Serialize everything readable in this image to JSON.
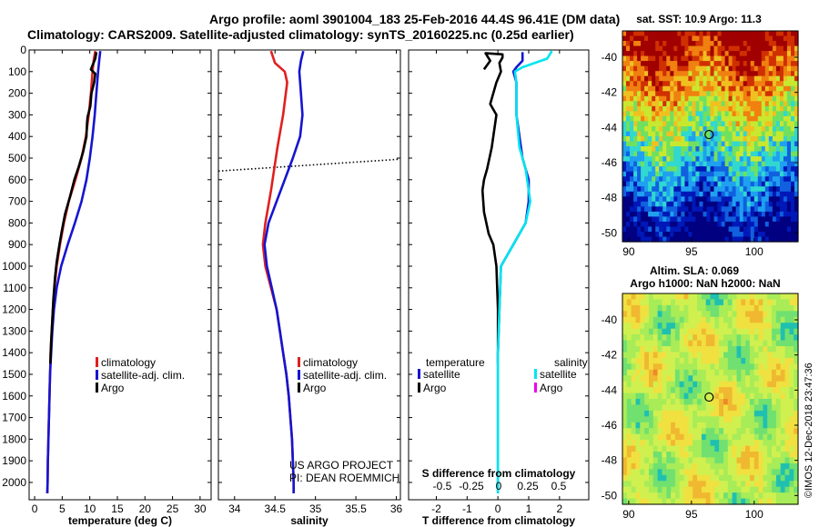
{
  "title": {
    "line1": "Argo profile: aoml 3901004_183 25-Feb-2016 44.4S 96.41E (DM data)",
    "line2": "Climatology: CARS2009. Satellite-adjusted climatology: synTS_20160225.nc (0.25d earlier)"
  },
  "colors": {
    "climatology": "#e02020",
    "satellite": "#1515d0",
    "argo": "#000000",
    "sat_salinity": "#00e5ee",
    "argo_salinity": "#ee00ee"
  },
  "depth_axis": {
    "ylim": [
      0,
      2080
    ],
    "ticks": [
      0,
      100,
      200,
      300,
      400,
      500,
      600,
      700,
      800,
      900,
      1000,
      1100,
      1200,
      1300,
      1400,
      1500,
      1600,
      1700,
      1800,
      1900,
      2000
    ]
  },
  "chart_data": [
    {
      "type": "line",
      "id": "temperature",
      "xlabel": "temperature (deg C)",
      "xlim": [
        -1,
        32
      ],
      "xticks": [
        0,
        5,
        10,
        15,
        20,
        25,
        30
      ],
      "legend": {
        "location": "lower-middle",
        "climatology": "climatology",
        "satellite": "satellite-adj. clim.",
        "argo": "Argo"
      },
      "series": [
        {
          "name": "climatology",
          "color": "#e02020",
          "points": [
            [
              11.0,
              5
            ],
            [
              10.7,
              50
            ],
            [
              10.5,
              100
            ],
            [
              10.2,
              200
            ],
            [
              9.8,
              300
            ],
            [
              9.3,
              400
            ],
            [
              8.5,
              500
            ],
            [
              7.4,
              600
            ],
            [
              6.2,
              700
            ],
            [
              5.3,
              800
            ],
            [
              4.6,
              900
            ],
            [
              4.0,
              1000
            ],
            [
              3.6,
              1100
            ],
            [
              3.3,
              1200
            ],
            [
              3.1,
              1300
            ],
            [
              2.9,
              1400
            ],
            [
              2.8,
              1500
            ],
            [
              2.7,
              1600
            ],
            [
              2.6,
              1700
            ],
            [
              2.5,
              1800
            ],
            [
              2.4,
              1900
            ],
            [
              2.35,
              2000
            ],
            [
              2.3,
              2050
            ]
          ]
        },
        {
          "name": "satellite",
          "color": "#1515d0",
          "points": [
            [
              11.9,
              5
            ],
            [
              11.7,
              50
            ],
            [
              11.5,
              100
            ],
            [
              11.2,
              200
            ],
            [
              10.9,
              300
            ],
            [
              10.5,
              400
            ],
            [
              10.0,
              500
            ],
            [
              9.4,
              600
            ],
            [
              8.5,
              700
            ],
            [
              7.3,
              800
            ],
            [
              6.0,
              900
            ],
            [
              4.8,
              1000
            ],
            [
              4.0,
              1100
            ],
            [
              3.5,
              1200
            ],
            [
              3.2,
              1300
            ],
            [
              3.0,
              1400
            ],
            [
              2.8,
              1500
            ],
            [
              2.7,
              1600
            ],
            [
              2.6,
              1700
            ],
            [
              2.5,
              1800
            ],
            [
              2.4,
              1900
            ],
            [
              2.35,
              2000
            ],
            [
              2.3,
              2050
            ]
          ]
        },
        {
          "name": "Argo",
          "color": "#000000",
          "points": [
            [
              11.2,
              10
            ],
            [
              11.0,
              40
            ],
            [
              10.2,
              90
            ],
            [
              11.0,
              110
            ],
            [
              10.8,
              150
            ],
            [
              10.3,
              200
            ],
            [
              10.1,
              260
            ],
            [
              9.6,
              310
            ],
            [
              9.5,
              340
            ],
            [
              9.4,
              400
            ],
            [
              8.8,
              470
            ],
            [
              8.0,
              540
            ],
            [
              7.2,
              600
            ],
            [
              6.4,
              680
            ],
            [
              5.5,
              760
            ],
            [
              4.9,
              840
            ],
            [
              4.5,
              900
            ],
            [
              4.0,
              980
            ],
            [
              3.7,
              1050
            ],
            [
              3.4,
              1150
            ],
            [
              3.2,
              1250
            ],
            [
              3.0,
              1350
            ],
            [
              2.85,
              1450
            ]
          ]
        }
      ]
    },
    {
      "type": "line",
      "id": "salinity",
      "xlabel": "salinity",
      "xlim": [
        33.8,
        36.05
      ],
      "xticks": [
        34,
        34.5,
        35,
        35.5,
        36
      ],
      "xtick_labels": [
        "34",
        "34.5",
        "35",
        "35.5",
        "36"
      ],
      "annotation_line1": "US ARGO PROJECT",
      "annotation_line2": "PI: DEAN ROEMMICH",
      "legend": {
        "location": "lower-middle",
        "climatology": "climatology",
        "satellite": "satellite-adj. clim.",
        "argo": "Argo"
      },
      "dotted_line": {
        "x": [
          33.8,
          36.05
        ],
        "y": [
          560,
          505
        ]
      },
      "series": [
        {
          "name": "climatology",
          "color": "#e02020",
          "points": [
            [
              34.45,
              5
            ],
            [
              34.5,
              60
            ],
            [
              34.62,
              100
            ],
            [
              34.65,
              150
            ],
            [
              34.6,
              300
            ],
            [
              34.53,
              450
            ],
            [
              34.45,
              650
            ],
            [
              34.38,
              800
            ],
            [
              34.35,
              900
            ],
            [
              34.38,
              1000
            ],
            [
              34.45,
              1100
            ],
            [
              34.52,
              1200
            ],
            [
              34.56,
              1300
            ],
            [
              34.6,
              1400
            ],
            [
              34.64,
              1500
            ],
            [
              34.67,
              1600
            ],
            [
              34.69,
              1700
            ],
            [
              34.71,
              1800
            ],
            [
              34.72,
              1900
            ],
            [
              34.73,
              2000
            ],
            [
              34.73,
              2050
            ]
          ]
        },
        {
          "name": "satellite",
          "color": "#1515d0",
          "points": [
            [
              34.85,
              5
            ],
            [
              34.82,
              50
            ],
            [
              34.8,
              100
            ],
            [
              34.82,
              200
            ],
            [
              34.84,
              300
            ],
            [
              34.81,
              400
            ],
            [
              34.72,
              500
            ],
            [
              34.62,
              600
            ],
            [
              34.52,
              700
            ],
            [
              34.42,
              800
            ],
            [
              34.37,
              900
            ],
            [
              34.4,
              1000
            ],
            [
              34.46,
              1100
            ],
            [
              34.52,
              1200
            ],
            [
              34.56,
              1300
            ],
            [
              34.6,
              1400
            ],
            [
              34.64,
              1500
            ],
            [
              34.67,
              1600
            ],
            [
              34.69,
              1700
            ],
            [
              34.71,
              1800
            ],
            [
              34.72,
              1900
            ],
            [
              34.73,
              2000
            ],
            [
              34.73,
              2050
            ]
          ]
        }
      ]
    },
    {
      "type": "line",
      "id": "difference",
      "xlabel": "T difference from climatology",
      "xlim": [
        -2.9,
        2.95
      ],
      "xticks": [
        -2,
        -1,
        0,
        1,
        2
      ],
      "top_axis_label": "S difference from climatology",
      "s_axis": {
        "ticks": [
          -0.5,
          -0.25,
          0,
          0.25,
          0.5
        ],
        "labels": [
          "-0.5",
          "-0.25",
          "0",
          "0.25",
          "0.5"
        ]
      },
      "legend": {
        "temperature_header": "temperature",
        "salinity_header": "salinity",
        "satellite": "satellite",
        "argo": "Argo"
      },
      "series": [
        {
          "name": "temperature satellite",
          "color": "#1515d0",
          "points": [
            [
              0.8,
              10
            ],
            [
              0.8,
              50
            ],
            [
              0.6,
              80
            ],
            [
              0.5,
              100
            ],
            [
              0.6,
              150
            ],
            [
              0.6,
              300
            ],
            [
              0.8,
              500
            ],
            [
              1.0,
              600
            ],
            [
              1.0,
              700
            ],
            [
              0.9,
              800
            ],
            [
              0.5,
              900
            ],
            [
              0.1,
              1000
            ],
            [
              0.05,
              1200
            ],
            [
              0,
              1400
            ],
            [
              0,
              2050
            ]
          ]
        },
        {
          "name": "temperature Argo",
          "color": "#000000",
          "points": [
            [
              -0.45,
              90
            ],
            [
              -0.25,
              50
            ],
            [
              -0.4,
              15
            ],
            [
              0.15,
              20
            ],
            [
              0.15,
              35
            ],
            [
              0.05,
              60
            ],
            [
              0.1,
              100
            ],
            [
              -0.05,
              150
            ],
            [
              -0.25,
              250
            ],
            [
              -0.05,
              300
            ],
            [
              -0.1,
              350
            ],
            [
              -0.2,
              450
            ],
            [
              -0.35,
              550
            ],
            [
              -0.45,
              600
            ],
            [
              -0.5,
              650
            ],
            [
              -0.45,
              750
            ],
            [
              -0.3,
              850
            ],
            [
              -0.15,
              900
            ],
            [
              -0.05,
              1000
            ],
            [
              0,
              1200
            ],
            [
              0,
              1450
            ]
          ]
        },
        {
          "name": "salinity satellite",
          "color": "#00e5ee",
          "points": [
            [
              1.75,
              5
            ],
            [
              1.6,
              40
            ],
            [
              0.8,
              80
            ],
            [
              0.55,
              100
            ],
            [
              0.6,
              150
            ],
            [
              0.6,
              300
            ],
            [
              0.7,
              450
            ],
            [
              0.9,
              550
            ],
            [
              0.95,
              600
            ],
            [
              1.05,
              700
            ],
            [
              0.9,
              800
            ],
            [
              0.5,
              900
            ],
            [
              0.1,
              1000
            ],
            [
              0.05,
              1200
            ],
            [
              0,
              1400
            ],
            [
              0,
              1600
            ],
            [
              0,
              2050
            ]
          ]
        }
      ]
    },
    {
      "type": "heatmap",
      "id": "sst_map",
      "title": "sat. SST: 10.9 Argo: 11.3",
      "xlim": [
        89.5,
        103.5
      ],
      "ylim": [
        -50.5,
        -38.5
      ],
      "xticks": [
        90,
        95,
        100
      ],
      "yticks": [
        -40,
        -42,
        -44,
        -46,
        -48,
        -50
      ],
      "marker": {
        "lon": 96.41,
        "lat": -44.4
      }
    },
    {
      "type": "heatmap",
      "id": "sla_map",
      "title_line1": "Altim. SLA: 0.069",
      "title_line2": "Argo h1000: NaN h2000: NaN",
      "xlim": [
        89.5,
        103.5
      ],
      "ylim": [
        -50.5,
        -38.5
      ],
      "xticks": [
        90,
        95,
        100
      ],
      "yticks": [
        -40,
        -42,
        -44,
        -46,
        -48,
        -50
      ],
      "marker": {
        "lon": 96.41,
        "lat": -44.4
      }
    }
  ],
  "footer_stamp": "©IMOS 12-Dec-2018 23:47:36"
}
